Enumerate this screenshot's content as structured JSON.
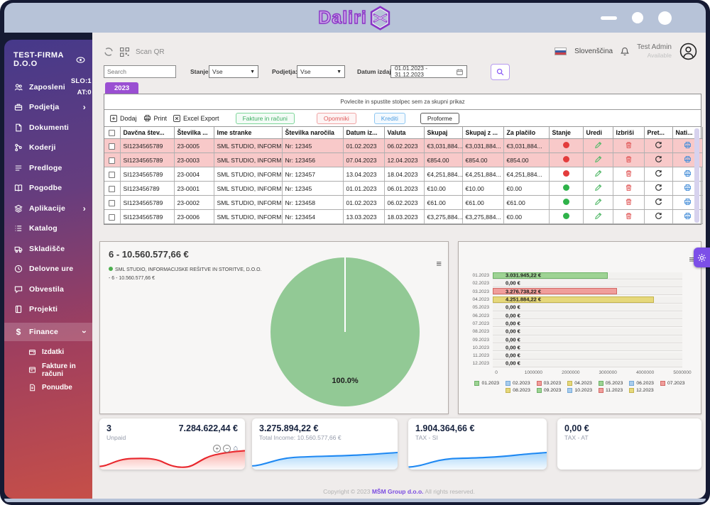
{
  "window": {
    "logo_text": "Daliri"
  },
  "topnav": {
    "scan_qr": "Scan QR",
    "language": "Slovenščina",
    "user_name": "Test Admin",
    "user_status": "Available"
  },
  "sidebar": {
    "company": "TEST-FIRMA D.O.O",
    "items": [
      {
        "label": "Zaposleni",
        "icon": "people",
        "meta": [
          "SLO:1",
          "AT:0"
        ]
      },
      {
        "label": "Podjetja",
        "icon": "briefcase",
        "chevron": "right"
      },
      {
        "label": "Dokumenti",
        "icon": "document"
      },
      {
        "label": "Koderji",
        "icon": "branch"
      },
      {
        "label": "Predloge",
        "icon": "templates"
      },
      {
        "label": "Pogodbe",
        "icon": "book"
      },
      {
        "label": "Aplikacije",
        "icon": "layers",
        "chevron": "right"
      },
      {
        "label": "Katalog",
        "icon": "list"
      },
      {
        "label": "Skladišče",
        "icon": "truck"
      },
      {
        "label": "Delovne ure",
        "icon": "clock"
      },
      {
        "label": "Obvestila",
        "icon": "chat"
      },
      {
        "label": "Projekti",
        "icon": "notebook"
      },
      {
        "label": "Finance",
        "icon": "dollar",
        "chevron": "down",
        "active": true
      }
    ],
    "sub_items": [
      {
        "label": "Izdatki",
        "icon": "wallet"
      },
      {
        "label": "Fakture in računi",
        "icon": "invoice"
      },
      {
        "label": "Ponudbe",
        "icon": "offer"
      }
    ]
  },
  "filters": {
    "search_placeholder": "Search",
    "stanje_label": "Stanje:",
    "stanje_value": "Vse",
    "podjetja_label": "Podjetja:",
    "podjetja_value": "Vse",
    "datum_label": "Datum izdaje:",
    "datum_value": "01.01.2023 - 31.12.2023"
  },
  "tab_year": "2023",
  "panel": {
    "dropzone": "Povlecite in spustite stolpec sem za skupni prikaz",
    "toolbar": {
      "dodaj": "Dodaj",
      "print": "Print",
      "excel": "Excel Export",
      "fakture": "Fakture in računi",
      "opomniki": "Opomniki",
      "krediti": "Krediti",
      "proforme": "Proforme"
    }
  },
  "table": {
    "columns": [
      "",
      "Davčna štev...",
      "Številka ...",
      "Ime stranke",
      "Številka naročila",
      "Datum iz...",
      "Valuta",
      "Skupaj",
      "Skupaj z ...",
      "Za plačilo",
      "Stanje",
      "Uredi",
      "Izbriši",
      "Pret...",
      "Nati..."
    ],
    "rows": [
      {
        "tax": "SI1234565789",
        "num": "23-0005",
        "client": "SML STUDIO, INFORM...",
        "order": "Nr: 12345",
        "date1": "01.02.2023",
        "date2": "06.02.2023",
        "total": "€3,031,884...",
        "total_tax": "€3,031,884...",
        "due": "€3,031,884...",
        "status": "red",
        "highlighted": true
      },
      {
        "tax": "SI1234565789",
        "num": "23-0003",
        "client": "SML STUDIO, INFORM...",
        "order": "Nr: 123456",
        "date1": "07.04.2023",
        "date2": "12.04.2023",
        "total": "€854.00",
        "total_tax": "€854.00",
        "due": "€854.00",
        "status": "red",
        "highlighted": true
      },
      {
        "tax": "SI1234565789",
        "num": "23-0004",
        "client": "SML STUDIO, INFORM...",
        "order": "Nr: 123457",
        "date1": "13.04.2023",
        "date2": "18.04.2023",
        "total": "€4,251,884...",
        "total_tax": "€4,251,884...",
        "due": "€4,251,884...",
        "status": "red",
        "highlighted": false
      },
      {
        "tax": "SI123456789",
        "num": "23-0001",
        "client": "SML STUDIO, INFORM...",
        "order": "Nr: 12345",
        "date1": "01.01.2023",
        "date2": "06.01.2023",
        "total": "€10.00",
        "total_tax": "€10.00",
        "due": "€0.00",
        "status": "green",
        "highlighted": false
      },
      {
        "tax": "SI1234565789",
        "num": "23-0002",
        "client": "SML STUDIO, INFORM...",
        "order": "Nr: 123458",
        "date1": "01.02.2023",
        "date2": "06.02.2023",
        "total": "€61.00",
        "total_tax": "€61.00",
        "due": "€61.00",
        "status": "green",
        "highlighted": false
      },
      {
        "tax": "SI1234565789",
        "num": "23-0006",
        "client": "SML STUDIO, INFORM...",
        "order": "Nr: 123454",
        "date1": "13.03.2023",
        "date2": "18.03.2023",
        "total": "€3,275,884...",
        "total_tax": "€3,275,884...",
        "due": "€0.00",
        "status": "green",
        "highlighted": false
      }
    ]
  },
  "chart_data": [
    {
      "type": "pie",
      "title": "6 - 10.560.577,66 €",
      "slices": [
        {
          "label": "SML STUDIO, INFORMACIJSKE REŠITVE IN STORITVE, D.O.O.",
          "sublabel": "- 6 - 10.560.577,66 €",
          "value": 100.0,
          "pct_label": "100.0%",
          "color": "#92c995"
        }
      ],
      "legend_position": "top-left"
    },
    {
      "type": "bar",
      "orientation": "horizontal",
      "categories": [
        "01.2023",
        "02.2023",
        "03.2023",
        "04.2023",
        "05.2023",
        "06.2023",
        "07.2023",
        "08.2023",
        "09.2023",
        "10.2023",
        "11.2023",
        "12.2023"
      ],
      "values": [
        3031945.22,
        0,
        3276738.22,
        4251884.22,
        0,
        0,
        0,
        0,
        0,
        0,
        0,
        0
      ],
      "value_labels": [
        "3.031.945,22 €",
        "0,00 €",
        "3.276.738,22 €",
        "4.251.884,22 €",
        "0,00 €",
        "0,00 €",
        "0,00 €",
        "0,00 €",
        "0,00 €",
        "0,00 €",
        "0,00 €",
        "0,00 €"
      ],
      "xlim": [
        0,
        5000000
      ],
      "xticks": [
        "0",
        "1000000",
        "2000000",
        "3000000",
        "4000000",
        "5000000"
      ],
      "palette": [
        "#9ed394",
        "#a9cdec",
        "#f09e9b",
        "#e6d87b"
      ],
      "palette_border": [
        "#6cb166",
        "#74a8d8",
        "#d26a66",
        "#c4b44e"
      ],
      "legend_position": "bottom"
    }
  ],
  "cards": [
    {
      "count": "3",
      "value": "7.284.622,44 €",
      "label": "Unpaid",
      "trend_color": "#e8262c"
    },
    {
      "value": "3.275.894,22 €",
      "label": "Total Income: 10.560.577,66 €",
      "trend_color": "#1e88f2"
    },
    {
      "value": "1.904.364,66 €",
      "label": "TAX - SI",
      "trend_color": "#1e88f2"
    },
    {
      "value": "0,00 €",
      "label": "TAX - AT",
      "trend_color": "none"
    }
  ],
  "footer": {
    "prefix": "Copyright © 2023 ",
    "brand": "MŠM Group d.o.o.",
    "suffix": " All rights reserved."
  },
  "colors": {
    "accent_purple": "#7c4fe8",
    "tab_purple": "#9a4fd2",
    "sidebar_top": "#46398a",
    "sidebar_bottom": "#c64f48",
    "highlight_row": "#f8c9c9",
    "status_red": "#e33c3c",
    "status_green": "#2fb34a",
    "pie_green": "#92c995",
    "titlebar": "#b7c3d8"
  }
}
